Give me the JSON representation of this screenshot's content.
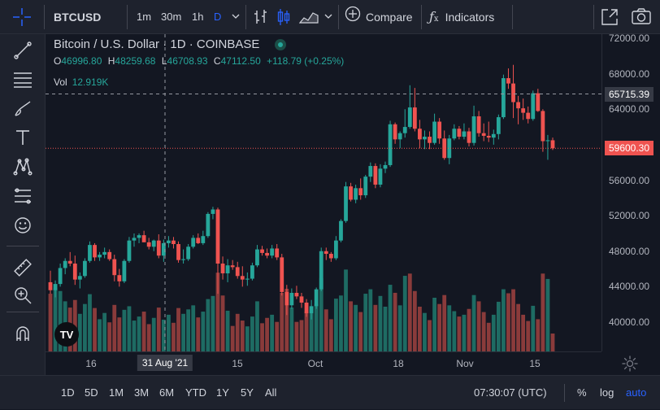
{
  "toolbar": {
    "symbol": "BTCUSD",
    "intervals": [
      "1m",
      "30m",
      "1h",
      "D"
    ],
    "compare": "Compare",
    "indicators": "Indicators"
  },
  "legend": {
    "title": "Bitcoin / U.S. Dollar · 1D · COINBASE",
    "o_label": "O",
    "o_value": "46996.80",
    "h_label": "H",
    "h_value": "48259.68",
    "l_label": "L",
    "l_value": "46708.93",
    "c_label": "C",
    "c_value": "47112.50",
    "change": "+118.79 (+0.25%)",
    "vol_label": "Vol",
    "vol_value": "12.919K"
  },
  "colors": {
    "up": "#26a69a",
    "down": "#ef5350",
    "vol_up": "#1e6b63",
    "vol_down": "#8a3b3b",
    "accent": "#2962ff"
  },
  "price_axis": {
    "ticks": [
      "72000.00",
      "68000.00",
      "64000.00",
      "60000.00",
      "56000.00",
      "52000.00",
      "48000.00",
      "44000.00",
      "40000.00"
    ],
    "crosshair_price": "65715.39",
    "last_price": "59600.30"
  },
  "time_axis": {
    "ticks": [
      "16",
      "15",
      "Oct",
      "18",
      "Nov",
      "15"
    ],
    "crosshair_date": "31 Aug '21"
  },
  "chart_data": {
    "type": "candlestick",
    "symbol": "BTCUSD",
    "ylim": [
      36000,
      74000
    ],
    "candles": [
      {
        "o": 44500,
        "h": 45800,
        "l": 43200,
        "c": 43600
      },
      {
        "o": 43600,
        "h": 44700,
        "l": 42800,
        "c": 44300
      },
      {
        "o": 44300,
        "h": 46600,
        "l": 44000,
        "c": 46100
      },
      {
        "o": 46100,
        "h": 47200,
        "l": 45400,
        "c": 46900
      },
      {
        "o": 46900,
        "h": 47900,
        "l": 46300,
        "c": 46600
      },
      {
        "o": 46600,
        "h": 47500,
        "l": 44200,
        "c": 44800
      },
      {
        "o": 44800,
        "h": 45600,
        "l": 43800,
        "c": 45200
      },
      {
        "o": 45200,
        "h": 47200,
        "l": 45000,
        "c": 46900
      },
      {
        "o": 46900,
        "h": 49100,
        "l": 46700,
        "c": 48700
      },
      {
        "o": 48700,
        "h": 48900,
        "l": 46900,
        "c": 47300
      },
      {
        "o": 47300,
        "h": 47900,
        "l": 46900,
        "c": 47600
      },
      {
        "o": 47600,
        "h": 48400,
        "l": 47200,
        "c": 47900
      },
      {
        "o": 47900,
        "h": 48200,
        "l": 46900,
        "c": 47100
      },
      {
        "o": 47100,
        "h": 47600,
        "l": 44600,
        "c": 45300
      },
      {
        "o": 45300,
        "h": 46000,
        "l": 44000,
        "c": 44600
      },
      {
        "o": 44600,
        "h": 47100,
        "l": 44400,
        "c": 46900
      },
      {
        "o": 46900,
        "h": 49600,
        "l": 46700,
        "c": 49200
      },
      {
        "o": 49200,
        "h": 50000,
        "l": 48500,
        "c": 49500
      },
      {
        "o": 49500,
        "h": 50000,
        "l": 48900,
        "c": 49800
      },
      {
        "o": 49800,
        "h": 50300,
        "l": 49200,
        "c": 49000
      },
      {
        "o": 49000,
        "h": 49500,
        "l": 48200,
        "c": 48500
      },
      {
        "o": 48500,
        "h": 49300,
        "l": 48000,
        "c": 49200
      },
      {
        "o": 49200,
        "h": 49900,
        "l": 47200,
        "c": 47500
      },
      {
        "o": 47500,
        "h": 49300,
        "l": 46800,
        "c": 48900
      },
      {
        "o": 48900,
        "h": 49700,
        "l": 48400,
        "c": 49200
      },
      {
        "o": 49200,
        "h": 49600,
        "l": 48300,
        "c": 48800
      },
      {
        "o": 48800,
        "h": 49100,
        "l": 46700,
        "c": 47000
      },
      {
        "o": 47000,
        "h": 48200,
        "l": 46600,
        "c": 47100
      },
      {
        "o": 47100,
        "h": 48800,
        "l": 46900,
        "c": 48500
      },
      {
        "o": 48500,
        "h": 49800,
        "l": 48300,
        "c": 49500
      },
      {
        "o": 49500,
        "h": 50000,
        "l": 48800,
        "c": 48900
      },
      {
        "o": 48900,
        "h": 50300,
        "l": 48700,
        "c": 49700
      },
      {
        "o": 49700,
        "h": 52400,
        "l": 49500,
        "c": 52200
      },
      {
        "o": 52200,
        "h": 53000,
        "l": 51600,
        "c": 52700
      },
      {
        "o": 52700,
        "h": 52900,
        "l": 43200,
        "c": 46600
      },
      {
        "o": 46600,
        "h": 47400,
        "l": 44800,
        "c": 45500
      },
      {
        "o": 45500,
        "h": 47100,
        "l": 44500,
        "c": 46400
      },
      {
        "o": 46400,
        "h": 47000,
        "l": 45900,
        "c": 46200
      },
      {
        "o": 46200,
        "h": 46800,
        "l": 44900,
        "c": 45200
      },
      {
        "o": 45200,
        "h": 46300,
        "l": 44000,
        "c": 44800
      },
      {
        "o": 44800,
        "h": 45600,
        "l": 44100,
        "c": 44900
      },
      {
        "o": 44900,
        "h": 46700,
        "l": 44700,
        "c": 46400
      },
      {
        "o": 46400,
        "h": 48700,
        "l": 46200,
        "c": 48200
      },
      {
        "o": 48200,
        "h": 48600,
        "l": 47500,
        "c": 47800
      },
      {
        "o": 47800,
        "h": 48300,
        "l": 47200,
        "c": 47500
      },
      {
        "o": 47500,
        "h": 48700,
        "l": 47200,
        "c": 48300
      },
      {
        "o": 48300,
        "h": 48800,
        "l": 47000,
        "c": 47300
      },
      {
        "o": 47300,
        "h": 47700,
        "l": 43000,
        "c": 43400
      },
      {
        "o": 43400,
        "h": 44200,
        "l": 40800,
        "c": 41900
      },
      {
        "o": 41900,
        "h": 43800,
        "l": 41500,
        "c": 43300
      },
      {
        "o": 43300,
        "h": 44100,
        "l": 42600,
        "c": 42900
      },
      {
        "o": 42900,
        "h": 43300,
        "l": 41600,
        "c": 42200
      },
      {
        "o": 42200,
        "h": 42600,
        "l": 40600,
        "c": 41000
      },
      {
        "o": 41000,
        "h": 42500,
        "l": 40300,
        "c": 41800
      },
      {
        "o": 41800,
        "h": 43900,
        "l": 41500,
        "c": 43700
      },
      {
        "o": 43700,
        "h": 48400,
        "l": 43500,
        "c": 48000
      },
      {
        "o": 48000,
        "h": 48400,
        "l": 47000,
        "c": 47700
      },
      {
        "o": 47700,
        "h": 47900,
        "l": 46800,
        "c": 47200
      },
      {
        "o": 47200,
        "h": 49700,
        "l": 47000,
        "c": 49200
      },
      {
        "o": 49200,
        "h": 51600,
        "l": 49000,
        "c": 51400
      },
      {
        "o": 51400,
        "h": 55800,
        "l": 51200,
        "c": 55300
      },
      {
        "o": 55300,
        "h": 55700,
        "l": 53600,
        "c": 53800
      },
      {
        "o": 53800,
        "h": 55500,
        "l": 53400,
        "c": 55100
      },
      {
        "o": 55100,
        "h": 56200,
        "l": 53800,
        "c": 54300
      },
      {
        "o": 54300,
        "h": 56600,
        "l": 54000,
        "c": 56400
      },
      {
        "o": 56400,
        "h": 58000,
        "l": 55800,
        "c": 57600
      },
      {
        "o": 57600,
        "h": 57900,
        "l": 55100,
        "c": 55500
      },
      {
        "o": 55500,
        "h": 57800,
        "l": 55200,
        "c": 57300
      },
      {
        "o": 57300,
        "h": 58100,
        "l": 56800,
        "c": 57700
      },
      {
        "o": 57700,
        "h": 62700,
        "l": 57500,
        "c": 62300
      },
      {
        "o": 62300,
        "h": 62500,
        "l": 60100,
        "c": 60600
      },
      {
        "o": 60600,
        "h": 61500,
        "l": 59600,
        "c": 61300
      },
      {
        "o": 61300,
        "h": 64000,
        "l": 60800,
        "c": 62000
      },
      {
        "o": 62000,
        "h": 66700,
        "l": 61800,
        "c": 64200
      },
      {
        "o": 64200,
        "h": 66400,
        "l": 61500,
        "c": 61800
      },
      {
        "o": 61800,
        "h": 62800,
        "l": 59600,
        "c": 60600
      },
      {
        "o": 60600,
        "h": 61600,
        "l": 59500,
        "c": 60900
      },
      {
        "o": 60900,
        "h": 61500,
        "l": 59500,
        "c": 60200
      },
      {
        "o": 60200,
        "h": 63500,
        "l": 60000,
        "c": 62600
      },
      {
        "o": 62600,
        "h": 63000,
        "l": 60100,
        "c": 60700
      },
      {
        "o": 60700,
        "h": 61600,
        "l": 58300,
        "c": 58500
      },
      {
        "o": 58500,
        "h": 61100,
        "l": 57800,
        "c": 60700
      },
      {
        "o": 60700,
        "h": 62300,
        "l": 60500,
        "c": 61800
      },
      {
        "o": 61800,
        "h": 62100,
        "l": 60600,
        "c": 60900
      },
      {
        "o": 60900,
        "h": 62400,
        "l": 60600,
        "c": 61500
      },
      {
        "o": 61500,
        "h": 61900,
        "l": 59800,
        "c": 60200
      },
      {
        "o": 60200,
        "h": 64400,
        "l": 59900,
        "c": 63200
      },
      {
        "o": 63200,
        "h": 63800,
        "l": 60900,
        "c": 61300
      },
      {
        "o": 61300,
        "h": 62400,
        "l": 60400,
        "c": 61000
      },
      {
        "o": 61000,
        "h": 62600,
        "l": 60300,
        "c": 60800
      },
      {
        "o": 60800,
        "h": 61700,
        "l": 60000,
        "c": 61200
      },
      {
        "o": 61200,
        "h": 63400,
        "l": 60600,
        "c": 63100
      },
      {
        "o": 63100,
        "h": 67900,
        "l": 62900,
        "c": 67500
      },
      {
        "o": 67500,
        "h": 68600,
        "l": 66300,
        "c": 66900
      },
      {
        "o": 66900,
        "h": 69000,
        "l": 63000,
        "c": 64800
      },
      {
        "o": 64800,
        "h": 65500,
        "l": 62300,
        "c": 64100
      },
      {
        "o": 64100,
        "h": 65200,
        "l": 62800,
        "c": 63600
      },
      {
        "o": 63600,
        "h": 64300,
        "l": 62400,
        "c": 62900
      },
      {
        "o": 62900,
        "h": 66100,
        "l": 62700,
        "c": 65800
      },
      {
        "o": 65800,
        "h": 66300,
        "l": 63700,
        "c": 63800
      },
      {
        "o": 63800,
        "h": 64000,
        "l": 59200,
        "c": 60400
      },
      {
        "o": 60400,
        "h": 61100,
        "l": 58300,
        "c": 60500
      },
      {
        "o": 60500,
        "h": 60800,
        "l": 59400,
        "c": 59600
      }
    ],
    "volumes_k": [
      {
        "v": 12.9,
        "up": false
      },
      {
        "v": 14.1,
        "up": true
      },
      {
        "v": 13.5,
        "up": true
      },
      {
        "v": 11.2,
        "up": true
      },
      {
        "v": 9.8,
        "up": false
      },
      {
        "v": 11.5,
        "up": false
      },
      {
        "v": 8.4,
        "up": true
      },
      {
        "v": 10.6,
        "up": true
      },
      {
        "v": 12.8,
        "up": true
      },
      {
        "v": 9.7,
        "up": false
      },
      {
        "v": 7.2,
        "up": true
      },
      {
        "v": 8.6,
        "up": true
      },
      {
        "v": 6.5,
        "up": false
      },
      {
        "v": 10.4,
        "up": false
      },
      {
        "v": 7.6,
        "up": false
      },
      {
        "v": 9.3,
        "up": true
      },
      {
        "v": 10.1,
        "up": true
      },
      {
        "v": 6.9,
        "up": true
      },
      {
        "v": 7.8,
        "up": true
      },
      {
        "v": 8.9,
        "up": false
      },
      {
        "v": 6.1,
        "up": false
      },
      {
        "v": 7.5,
        "up": true
      },
      {
        "v": 9.8,
        "up": false
      },
      {
        "v": 7.1,
        "up": true
      },
      {
        "v": 8.2,
        "up": true
      },
      {
        "v": 6.4,
        "up": false
      },
      {
        "v": 9.7,
        "up": false
      },
      {
        "v": 8.4,
        "up": true
      },
      {
        "v": 9.4,
        "up": true
      },
      {
        "v": 10.3,
        "up": true
      },
      {
        "v": 7.6,
        "up": false
      },
      {
        "v": 8.9,
        "up": true
      },
      {
        "v": 11.7,
        "up": true
      },
      {
        "v": 12.4,
        "up": true
      },
      {
        "v": 17.6,
        "up": false
      },
      {
        "v": 12.5,
        "up": false
      },
      {
        "v": 9.1,
        "up": true
      },
      {
        "v": 5.7,
        "up": false
      },
      {
        "v": 8.4,
        "up": false
      },
      {
        "v": 6.9,
        "up": false
      },
      {
        "v": 5.6,
        "up": true
      },
      {
        "v": 7.8,
        "up": true
      },
      {
        "v": 11.2,
        "up": true
      },
      {
        "v": 6.3,
        "up": false
      },
      {
        "v": 7.5,
        "up": false
      },
      {
        "v": 8.2,
        "up": true
      },
      {
        "v": 6.6,
        "up": false
      },
      {
        "v": 13.1,
        "up": false
      },
      {
        "v": 14.0,
        "up": false
      },
      {
        "v": 9.8,
        "up": true
      },
      {
        "v": 6.6,
        "up": false
      },
      {
        "v": 7.0,
        "up": false
      },
      {
        "v": 8.9,
        "up": false
      },
      {
        "v": 9.4,
        "up": true
      },
      {
        "v": 10.6,
        "up": true
      },
      {
        "v": 16.4,
        "up": true
      },
      {
        "v": 9.4,
        "up": false
      },
      {
        "v": 7.2,
        "up": false
      },
      {
        "v": 11.8,
        "up": true
      },
      {
        "v": 12.5,
        "up": true
      },
      {
        "v": 18.3,
        "up": true
      },
      {
        "v": 11.2,
        "up": false
      },
      {
        "v": 10.4,
        "up": true
      },
      {
        "v": 8.8,
        "up": false
      },
      {
        "v": 12.9,
        "up": true
      },
      {
        "v": 13.9,
        "up": true
      },
      {
        "v": 10.4,
        "up": false
      },
      {
        "v": 12.4,
        "up": true
      },
      {
        "v": 10.0,
        "up": true
      },
      {
        "v": 14.9,
        "up": true
      },
      {
        "v": 13.1,
        "up": false
      },
      {
        "v": 10.3,
        "up": true
      },
      {
        "v": 16.9,
        "up": true
      },
      {
        "v": 17.4,
        "up": false
      },
      {
        "v": 13.5,
        "up": false
      },
      {
        "v": 10.0,
        "up": false
      },
      {
        "v": 8.6,
        "up": true
      },
      {
        "v": 7.0,
        "up": false
      },
      {
        "v": 12.0,
        "up": true
      },
      {
        "v": 10.6,
        "up": false
      },
      {
        "v": 12.6,
        "up": false
      },
      {
        "v": 10.3,
        "up": true
      },
      {
        "v": 9.0,
        "up": true
      },
      {
        "v": 7.8,
        "up": false
      },
      {
        "v": 8.2,
        "up": true
      },
      {
        "v": 9.5,
        "up": false
      },
      {
        "v": 12.6,
        "up": true
      },
      {
        "v": 11.2,
        "up": false
      },
      {
        "v": 8.8,
        "up": false
      },
      {
        "v": 6.4,
        "up": false
      },
      {
        "v": 8.2,
        "up": true
      },
      {
        "v": 11.1,
        "up": true
      },
      {
        "v": 13.9,
        "up": true
      },
      {
        "v": 13.0,
        "up": false
      },
      {
        "v": 13.9,
        "up": false
      },
      {
        "v": 10.6,
        "up": false
      },
      {
        "v": 8.2,
        "up": false
      },
      {
        "v": 6.8,
        "up": false
      },
      {
        "v": 10.2,
        "up": true
      },
      {
        "v": 7.2,
        "up": false
      },
      {
        "v": 17.4,
        "up": false
      },
      {
        "v": 16.2,
        "up": true
      },
      {
        "v": 4.0,
        "up": false
      }
    ]
  },
  "bottom": {
    "ranges": [
      "1D",
      "5D",
      "1M",
      "3M",
      "6M",
      "YTD",
      "1Y",
      "5Y",
      "All"
    ],
    "clock": "07:30:07 (UTC)",
    "percent": "%",
    "log": "log",
    "auto": "auto"
  },
  "watermark": "TV"
}
